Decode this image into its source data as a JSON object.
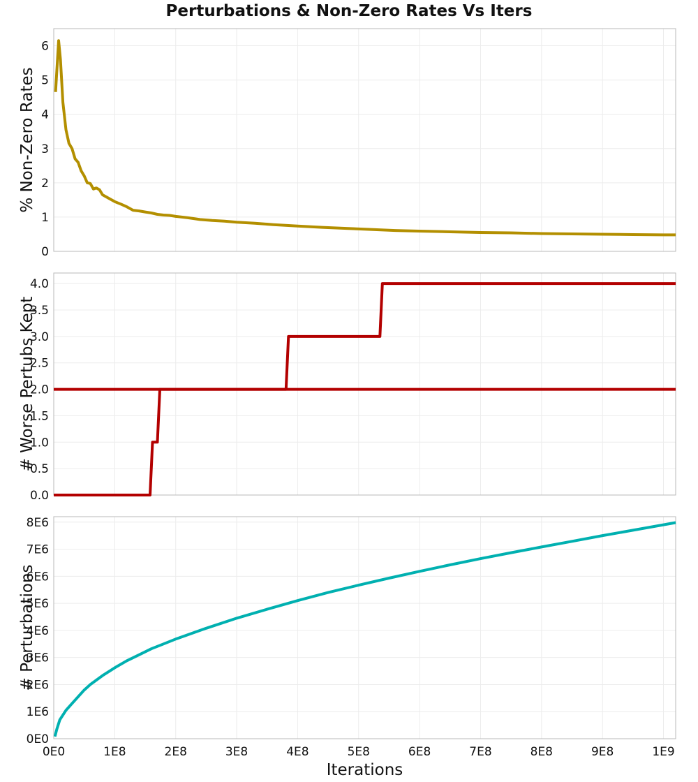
{
  "title": "Perturbations & Non-Zero Rates Vs Iters",
  "chart_data": [
    {
      "type": "line",
      "title": "",
      "xlabel": "",
      "ylabel": "% Non-Zero Rates",
      "xlim": [
        0,
        1020000000
      ],
      "ylim": [
        0,
        6.5
      ],
      "xticks": [
        0,
        100000000,
        200000000,
        300000000,
        400000000,
        500000000,
        600000000,
        700000000,
        800000000,
        900000000,
        1000000000
      ],
      "yticks": [
        0,
        1,
        2,
        3,
        4,
        5,
        6
      ],
      "ytick_labels": [
        "0",
        "1",
        "2",
        "3",
        "4",
        "5",
        "6"
      ],
      "grid": true,
      "color": "#b38f00",
      "series": [
        {
          "x": [
            3000000,
            8000000,
            11000000,
            15000000,
            20000000,
            25000000,
            30000000,
            35000000,
            40000000,
            45000000,
            50000000,
            55000000,
            60000000,
            65000000,
            70000000,
            75000000,
            80000000,
            90000000,
            100000000,
            110000000,
            120000000,
            130000000,
            140000000,
            150000000,
            160000000,
            170000000,
            180000000,
            190000000,
            200000000,
            220000000,
            240000000,
            260000000,
            280000000,
            300000000,
            330000000,
            360000000,
            400000000,
            440000000,
            480000000,
            520000000,
            560000000,
            600000000,
            650000000,
            700000000,
            750000000,
            800000000,
            850000000,
            900000000,
            950000000,
            1000000000,
            1020000000
          ],
          "y": [
            4.65,
            6.15,
            5.6,
            4.35,
            3.55,
            3.15,
            3.0,
            2.7,
            2.6,
            2.35,
            2.2,
            2.0,
            1.98,
            1.82,
            1.85,
            1.8,
            1.65,
            1.55,
            1.45,
            1.38,
            1.3,
            1.2,
            1.18,
            1.15,
            1.12,
            1.08,
            1.06,
            1.05,
            1.02,
            0.98,
            0.93,
            0.9,
            0.88,
            0.85,
            0.82,
            0.78,
            0.74,
            0.7,
            0.67,
            0.64,
            0.61,
            0.59,
            0.57,
            0.55,
            0.54,
            0.52,
            0.51,
            0.5,
            0.49,
            0.48,
            0.48
          ]
        }
      ]
    },
    {
      "type": "line",
      "title": "",
      "xlabel": "",
      "ylabel": "# Worse Pertubs Kept",
      "xlim": [
        0,
        1020000000
      ],
      "ylim": [
        0,
        4.2
      ],
      "xticks": [
        0,
        100000000,
        200000000,
        300000000,
        400000000,
        500000000,
        600000000,
        700000000,
        800000000,
        900000000,
        1000000000
      ],
      "yticks": [
        0,
        0.5,
        1.0,
        1.5,
        2.0,
        2.5,
        3.0,
        3.5,
        4.0
      ],
      "ytick_labels": [
        "0.0",
        "0.5",
        "1.0",
        "1.5",
        "2.0",
        "2.5",
        "3.0",
        "3.5",
        "4.0"
      ],
      "grid": true,
      "color": "#b30000",
      "series": [
        {
          "x": [
            0,
            158000000,
            162000000,
            170000000,
            174000000,
            1020000000
          ],
          "y": [
            0,
            0,
            1,
            1,
            2,
            2
          ]
        },
        {
          "x": [
            0,
            381000000,
            385000000,
            535000000,
            539000000,
            1020000000
          ],
          "y": [
            2,
            2,
            3,
            3,
            4,
            4
          ]
        }
      ]
    },
    {
      "type": "line",
      "title": "",
      "xlabel": "Iterations",
      "ylabel": "# Perturbations",
      "xlim": [
        0,
        1020000000
      ],
      "ylim": [
        0,
        8200000
      ],
      "xticks": [
        0,
        100000000,
        200000000,
        300000000,
        400000000,
        500000000,
        600000000,
        700000000,
        800000000,
        900000000,
        1000000000
      ],
      "xtick_labels": [
        "0E0",
        "1E8",
        "2E8",
        "3E8",
        "4E8",
        "5E8",
        "6E8",
        "7E8",
        "8E8",
        "9E8",
        "1E9"
      ],
      "yticks": [
        0,
        1000000,
        2000000,
        3000000,
        4000000,
        5000000,
        6000000,
        7000000,
        8000000
      ],
      "ytick_labels": [
        "0E0",
        "1E6",
        "2E6",
        "3E6",
        "4E6",
        "5E6",
        "6E6",
        "7E6",
        "8E6"
      ],
      "grid": true,
      "color": "#00b0b0",
      "series": [
        {
          "x": [
            2000000,
            5000000,
            10000000,
            20000000,
            30000000,
            40000000,
            50000000,
            60000000,
            80000000,
            100000000,
            120000000,
            140000000,
            160000000,
            180000000,
            200000000,
            250000000,
            300000000,
            350000000,
            400000000,
            450000000,
            500000000,
            550000000,
            600000000,
            650000000,
            700000000,
            750000000,
            800000000,
            850000000,
            900000000,
            950000000,
            1000000000,
            1020000000
          ],
          "y": [
            80000,
            350000,
            700000,
            1050000,
            1300000,
            1550000,
            1800000,
            2000000,
            2330000,
            2620000,
            2880000,
            3100000,
            3320000,
            3500000,
            3680000,
            4080000,
            4450000,
            4780000,
            5100000,
            5400000,
            5670000,
            5930000,
            6180000,
            6420000,
            6650000,
            6870000,
            7080000,
            7290000,
            7500000,
            7700000,
            7900000,
            7980000
          ]
        }
      ]
    }
  ]
}
